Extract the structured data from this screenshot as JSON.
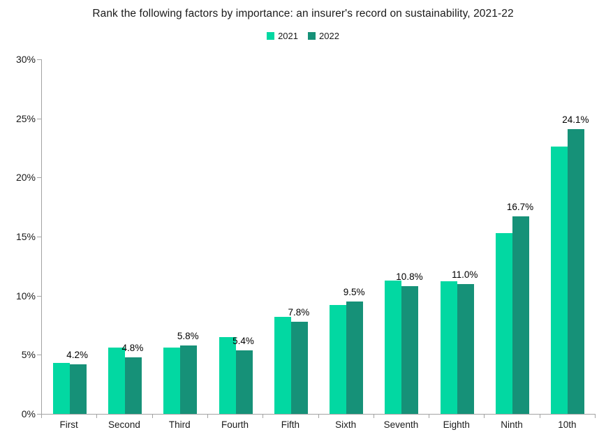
{
  "chart_data": {
    "type": "bar",
    "title": "Rank the following factors by importance: an insurer's record on sustainability, 2021-22",
    "categories": [
      "First",
      "Second",
      "Third",
      "Fourth",
      "Fifth",
      "Sixth",
      "Seventh",
      "Eighth",
      "Ninth",
      "10th"
    ],
    "series": [
      {
        "name": "2021",
        "color": "#02d8a2",
        "values": [
          4.3,
          5.6,
          5.6,
          6.5,
          8.2,
          9.2,
          11.3,
          11.2,
          15.3,
          22.6
        ]
      },
      {
        "name": "2022",
        "color": "#169178",
        "values": [
          4.2,
          4.8,
          5.8,
          5.4,
          7.8,
          9.5,
          10.8,
          11.0,
          16.7,
          24.1
        ],
        "data_labels": [
          "4.2%",
          "4.8%",
          "5.8%",
          "5.4%",
          "7.8%",
          "9.5%",
          "10.8%",
          "11.0%",
          "16.7%",
          "24.1%"
        ]
      }
    ],
    "ylabel": "",
    "xlabel": "",
    "ylim": [
      0,
      30
    ],
    "ytick_values": [
      0,
      5,
      10,
      15,
      20,
      25,
      30
    ],
    "ytick_labels": [
      "0%",
      "5%",
      "10%",
      "15%",
      "20%",
      "25%",
      "30%"
    ],
    "grid": false,
    "legend_position": "top",
    "data_label_series": "2022"
  }
}
